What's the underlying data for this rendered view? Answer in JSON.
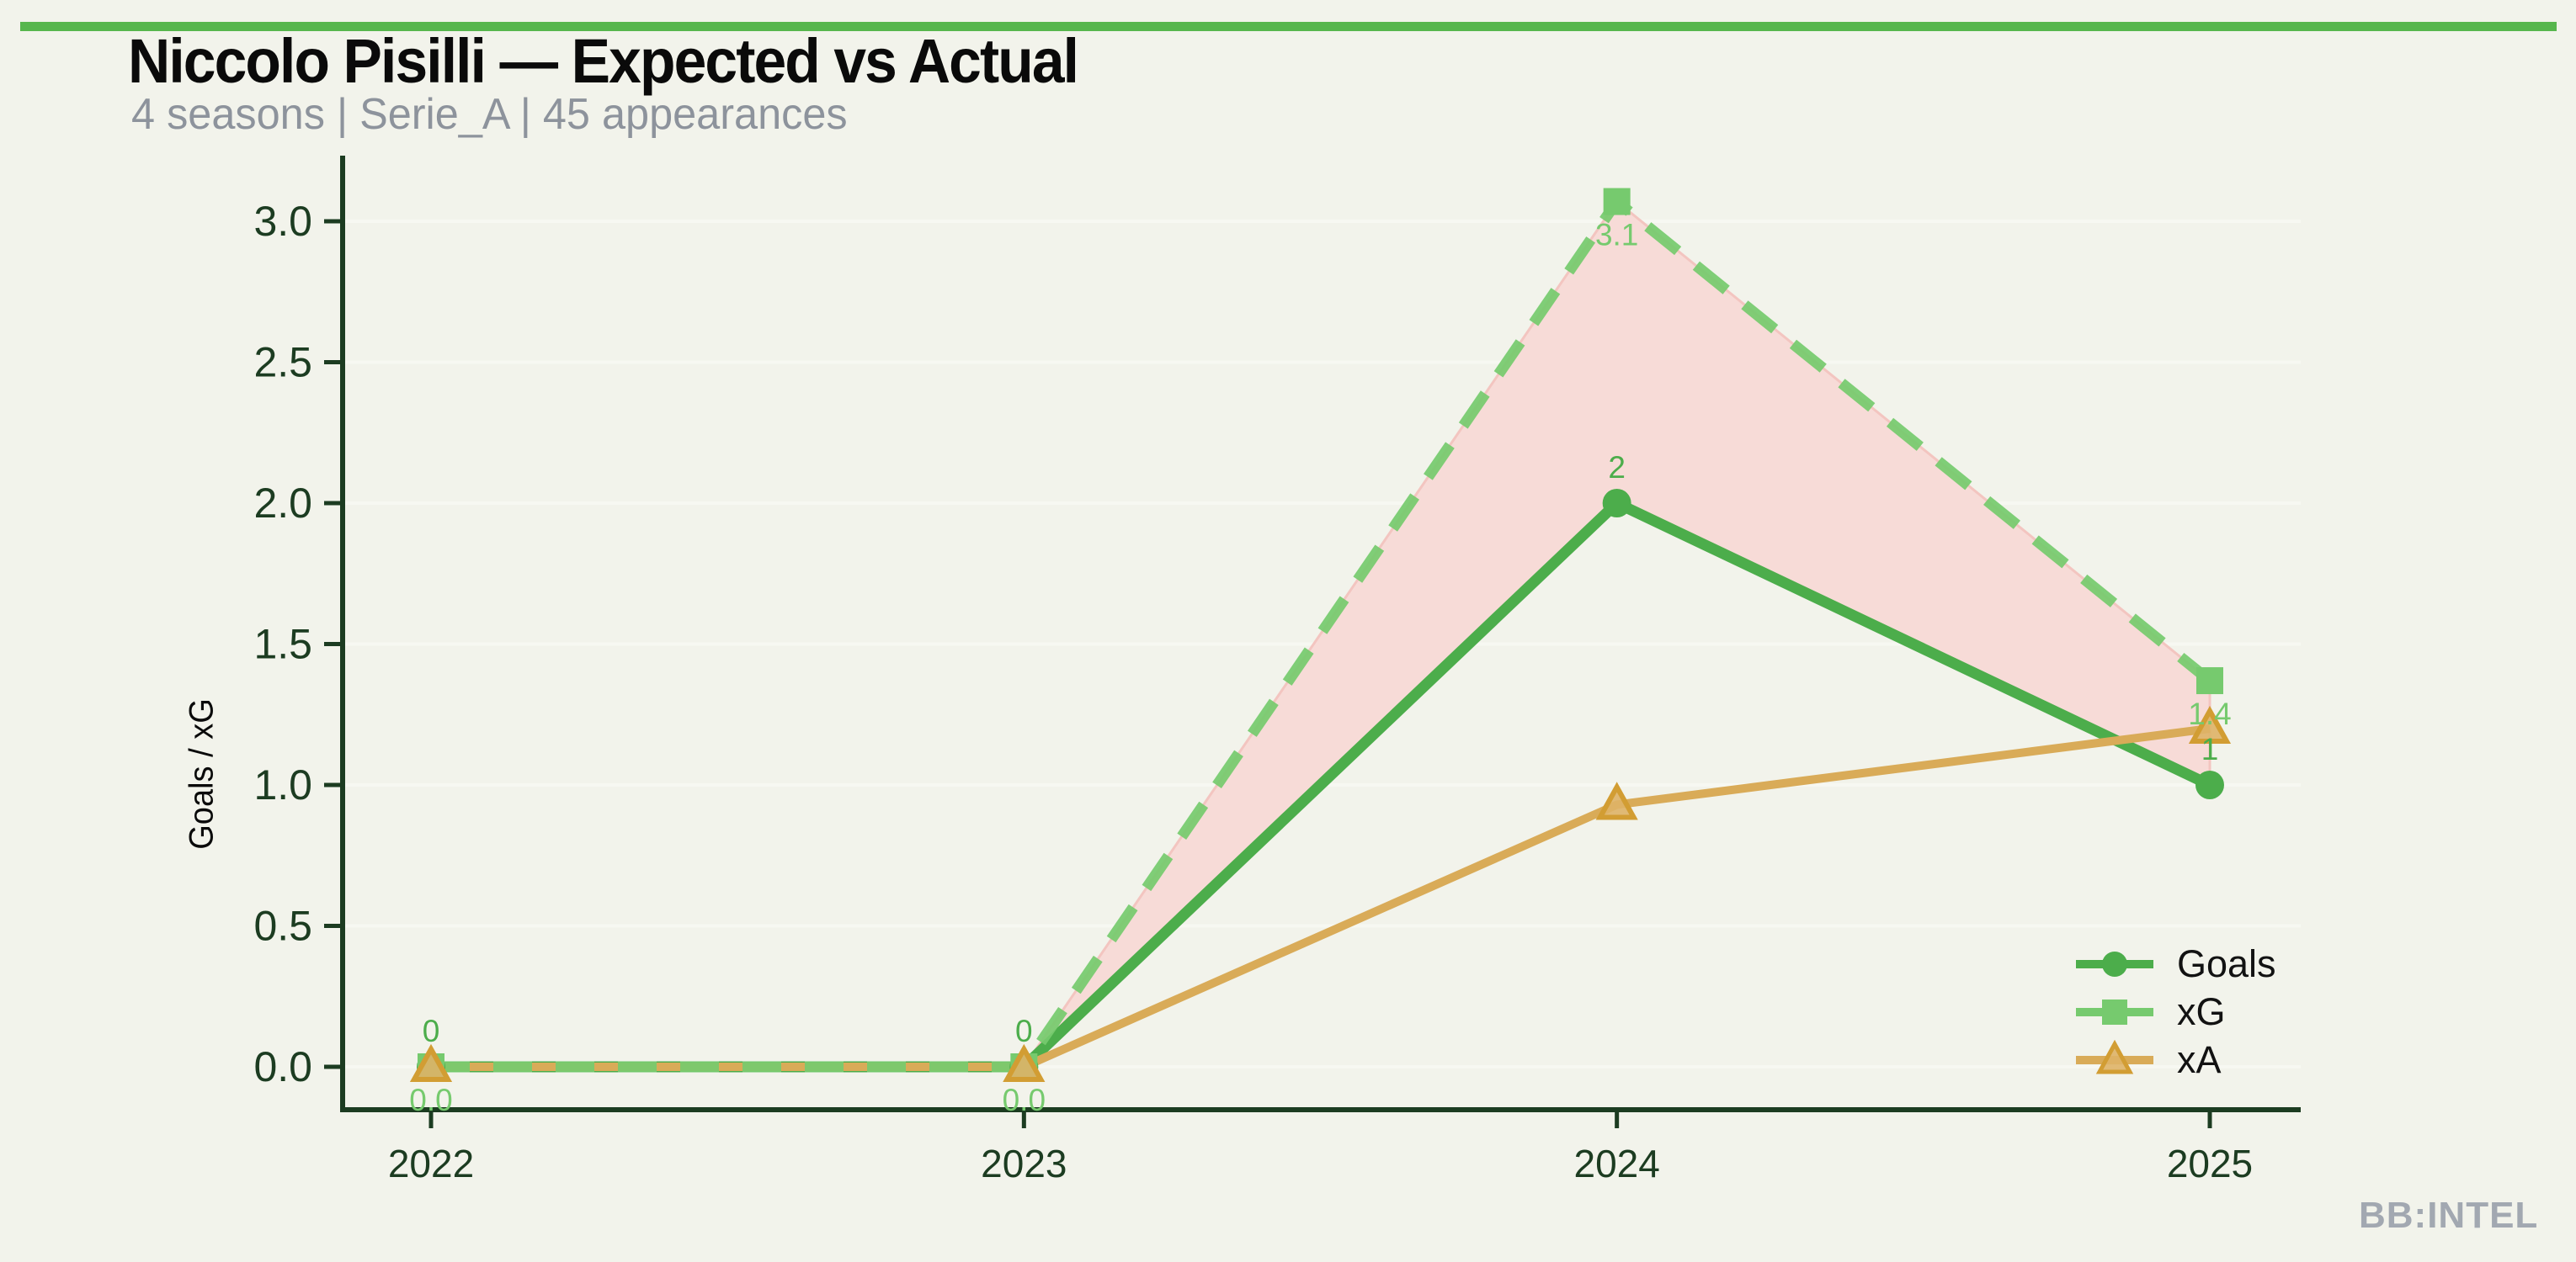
{
  "header": {
    "title": "Niccolo Pisilli — Expected vs Actual",
    "subtitle": "4 seasons | Serie_A | 45 appearances"
  },
  "footer": {
    "watermark": "BB:INTEL"
  },
  "colors": {
    "background": "#f2f3eb",
    "accent_bar": "#57b64d",
    "axis": "#1c3c21",
    "subtitle_gray": "#8d939c",
    "watermark_gray": "#a2a8b1",
    "goals_green": "#4cad4b",
    "xg_light_green": "#76ca6e",
    "xa_tan": "#d9ab58",
    "fill_pink": "#f7dbd7",
    "fill_pink_edge": "#f3c5c0",
    "gridline": "#f7f8f2"
  },
  "chart_data": {
    "type": "line",
    "title": "Niccolo Pisilli — Expected vs Actual",
    "subtitle": "4 seasons | Serie_A | 45 appearances",
    "xlabel": "",
    "ylabel": "Goals / xG",
    "categories": [
      "2022",
      "2023",
      "2024",
      "2025"
    ],
    "yticks": [
      "0.0",
      "0.5",
      "1.0",
      "1.5",
      "2.0",
      "2.5",
      "3.0"
    ],
    "ylim": [
      0,
      3.2
    ],
    "grid": "faint horizontal gridlines at each y tick",
    "legend_position": "lower right",
    "series": [
      {
        "name": "Goals",
        "marker": "circle",
        "line": "solid",
        "color": "#4cad4b",
        "values": [
          0,
          0,
          2,
          1
        ],
        "point_labels": [
          "0",
          "0",
          "2",
          "1"
        ],
        "label_dy": -30
      },
      {
        "name": "xG",
        "marker": "square",
        "line": "dashed",
        "color": "#76ca6e",
        "values": [
          0,
          0,
          3.07,
          1.37
        ],
        "point_labels": [
          "0.0",
          "0.0",
          "3.1",
          "1.4"
        ],
        "label_dy": 52
      },
      {
        "name": "xA",
        "marker": "triangle",
        "line": "solid",
        "color": "#d9ab58",
        "values": [
          0,
          0,
          0.93,
          1.2
        ],
        "point_labels": null,
        "label_dy": 0
      }
    ],
    "fill_between": {
      "upper": "xG",
      "lower": "Goals",
      "color": "#f7dbd7",
      "from_index": 1,
      "to_index": 3
    }
  }
}
